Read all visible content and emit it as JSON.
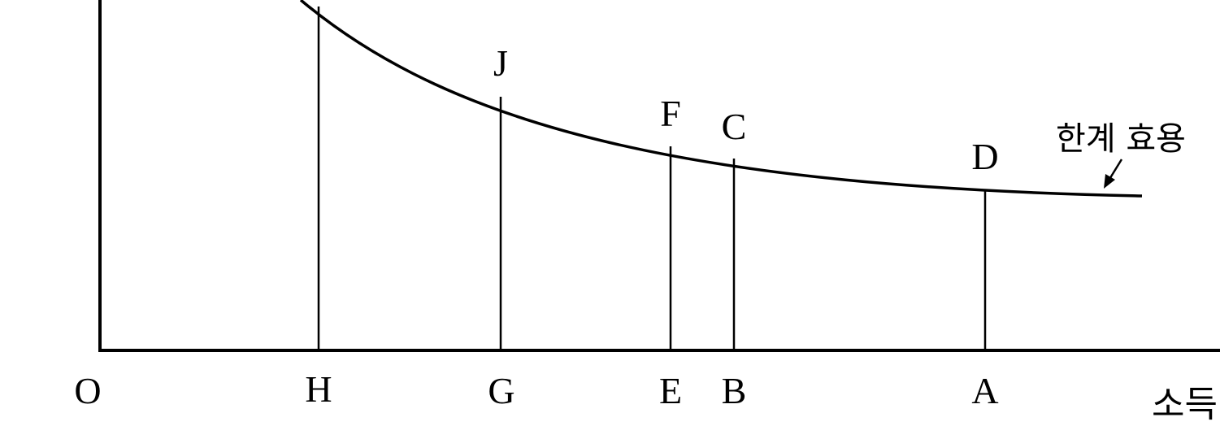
{
  "diagram": {
    "origin_label": "O",
    "x_axis_label": "소득",
    "curve_label": "한계 효용",
    "points": [
      {
        "id": "H",
        "top_label": ""
      },
      {
        "id": "G",
        "top_label": "J"
      },
      {
        "id": "E",
        "top_label": "F"
      },
      {
        "id": "B",
        "top_label": "C"
      },
      {
        "id": "A",
        "top_label": "D"
      }
    ],
    "colors": {
      "ink": "#000000",
      "background": "#ffffff"
    }
  }
}
